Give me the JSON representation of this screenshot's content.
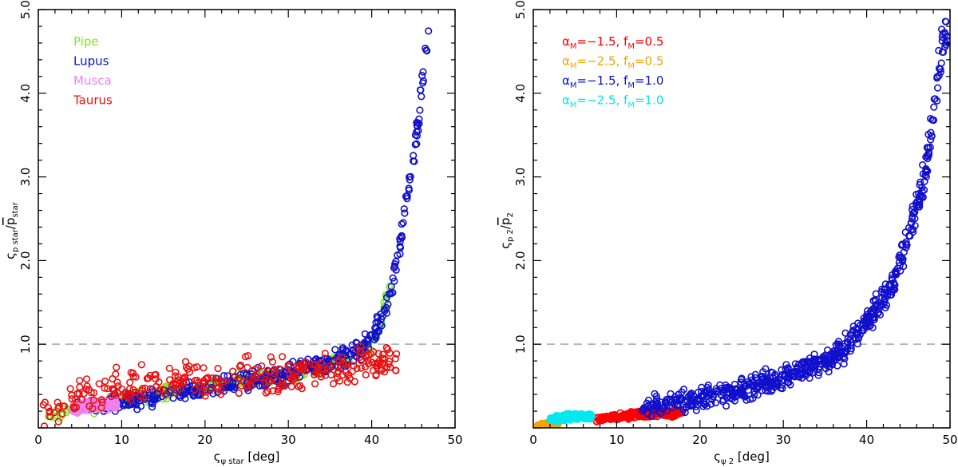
{
  "chart_data": [
    {
      "type": "scatter",
      "xlim": [
        0,
        50
      ],
      "ylim": [
        0,
        5.0
      ],
      "xticks": [
        "0",
        "10",
        "20",
        "30",
        "40",
        "50"
      ],
      "yticks": [
        "1.0",
        "2.0",
        "3.0",
        "4.0",
        "5.0"
      ],
      "xlabel": {
        "sym": "ς",
        "sub": "ψ star",
        "rest": " [deg]"
      },
      "ylabel": {
        "sym": "ς",
        "sub": "p star",
        "slash": "/",
        "bar": "p",
        "barsub": "star"
      },
      "reference_line": 1.0,
      "grid": false,
      "legend_placement": "top-left",
      "series": [
        {
          "name": "Pipe",
          "color": "#7fe62a",
          "trend": [
            [
              1,
              0.17
            ],
            [
              5,
              0.22
            ],
            [
              10,
              0.32
            ],
            [
              15,
              0.42
            ],
            [
              20,
              0.5
            ],
            [
              25,
              0.58
            ],
            [
              30,
              0.62
            ],
            [
              34,
              0.72
            ],
            [
              37,
              0.84
            ],
            [
              40,
              1.0
            ],
            [
              41,
              1.2
            ],
            [
              42,
              1.65
            ]
          ],
          "x_range": [
            1,
            42.5
          ],
          "n": 240,
          "spread": 0.06
        },
        {
          "name": "Lupus",
          "color": "#1010cc",
          "trend": [
            [
              5,
              0.23
            ],
            [
              10,
              0.3
            ],
            [
              15,
              0.38
            ],
            [
              20,
              0.47
            ],
            [
              25,
              0.56
            ],
            [
              30,
              0.65
            ],
            [
              35,
              0.8
            ],
            [
              38,
              0.9
            ],
            [
              40,
              1.05
            ],
            [
              42,
              1.5
            ],
            [
              43,
              2.0
            ],
            [
              44,
              2.6
            ],
            [
              45,
              3.2
            ],
            [
              46,
              4.0
            ],
            [
              46.5,
              4.6
            ]
          ],
          "x_range": [
            4,
            47
          ],
          "n": 420,
          "spread": 0.08
        },
        {
          "name": "Musca",
          "color": "#ee82ee",
          "trend": [
            [
              4,
              0.22
            ],
            [
              6,
              0.26
            ],
            [
              8,
              0.28
            ],
            [
              9.5,
              0.27
            ]
          ],
          "x_range": [
            4,
            9.5
          ],
          "n": 160,
          "spread": 0.05
        },
        {
          "name": "Taurus",
          "color": "#e81010",
          "trend": [
            [
              0.5,
              0.15
            ],
            [
              3,
              0.3
            ],
            [
              6,
              0.42
            ],
            [
              9,
              0.5
            ],
            [
              12,
              0.52
            ],
            [
              15,
              0.55
            ],
            [
              17,
              0.6
            ],
            [
              20,
              0.55
            ],
            [
              30,
              0.62
            ],
            [
              40,
              0.8
            ]
          ],
          "x_range": [
            0.5,
            43
          ],
          "n": 300,
          "spread": 0.16
        }
      ]
    },
    {
      "type": "scatter",
      "xlim": [
        0,
        50
      ],
      "ylim": [
        0,
        5.0
      ],
      "xticks": [
        "0",
        "10",
        "20",
        "30",
        "40",
        "50"
      ],
      "yticks": [
        "1.0",
        "2.0",
        "3.0",
        "4.0",
        "5.0"
      ],
      "xlabel": {
        "sym": "ς",
        "sub": "ψ 2",
        "rest": " [deg]"
      },
      "ylabel": {
        "sym": "ς",
        "sub": "p 2",
        "slash": "/",
        "bar": "p",
        "barsub": "2"
      },
      "reference_line": 1.0,
      "grid": false,
      "legend_placement": "top-left",
      "series": [
        {
          "name": "αM=−1.5, fM=0.5",
          "label_parts": [
            "α",
            "M",
            "=−1.5,  f",
            "M",
            "=0.5"
          ],
          "color": "#ff0000",
          "trend": [
            [
              8,
              0.1
            ],
            [
              10,
              0.13
            ],
            [
              13,
              0.16
            ],
            [
              16,
              0.18
            ],
            [
              18,
              0.19
            ]
          ],
          "x_range": [
            7.5,
            18
          ],
          "n": 260,
          "spread": 0.035
        },
        {
          "name": "αM=−2.5, fM=0.5",
          "label_parts": [
            "α",
            "M",
            "=−2.5,  f",
            "M",
            "=0.5"
          ],
          "color": "#f5a300",
          "trend": [
            [
              0.5,
              0.04
            ],
            [
              2,
              0.05
            ],
            [
              3,
              0.05
            ]
          ],
          "x_range": [
            0.5,
            3
          ],
          "n": 60,
          "spread": 0.015
        },
        {
          "name": "αM=−1.5, fM=1.0",
          "label_parts": [
            "α",
            "M",
            "=−1.5,  f",
            "M",
            "=1.0"
          ],
          "color": "#1010cc",
          "trend": [
            [
              14,
              0.25
            ],
            [
              20,
              0.35
            ],
            [
              25,
              0.45
            ],
            [
              30,
              0.6
            ],
            [
              35,
              0.8
            ],
            [
              38,
              1.0
            ],
            [
              41,
              1.4
            ],
            [
              43,
              1.7
            ],
            [
              45,
              2.3
            ],
            [
              47,
              3.0
            ],
            [
              48,
              3.8
            ],
            [
              49.5,
              4.8
            ]
          ],
          "x_range": [
            13,
            49.8
          ],
          "n": 620,
          "spread": 0.1
        },
        {
          "name": "αM=−2.5, fM=1.0",
          "label_parts": [
            "α",
            "M",
            "=−2.5,  f",
            "M",
            "=1.0"
          ],
          "color": "#00e8f0",
          "trend": [
            [
              2,
              0.1
            ],
            [
              4,
              0.13
            ],
            [
              6,
              0.14
            ],
            [
              7,
              0.14
            ]
          ],
          "x_range": [
            2,
            7
          ],
          "n": 150,
          "spread": 0.03
        }
      ]
    }
  ]
}
